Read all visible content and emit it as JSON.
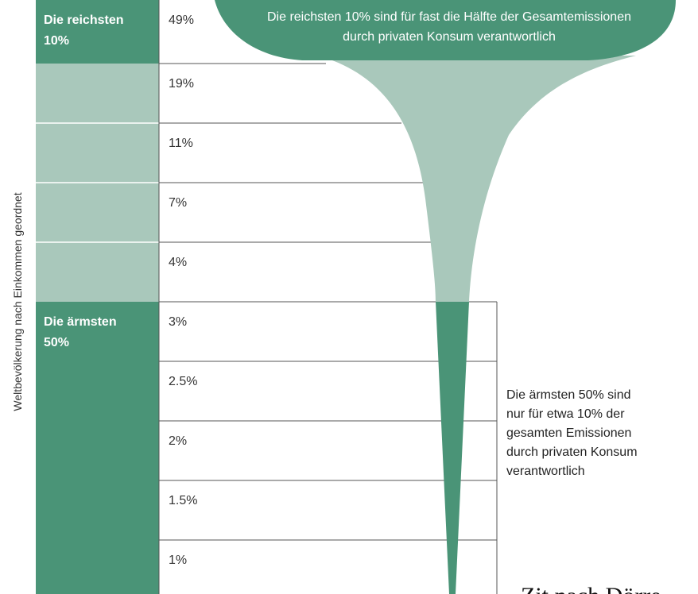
{
  "axis_label": "Weltbevölkerung nach Einkommen geordnet",
  "groups": [
    {
      "lines": [
        "Die reichsten",
        "10%"
      ]
    },
    {
      "lines": [
        "Die ärmsten",
        "50%"
      ]
    }
  ],
  "rows": [
    "49%",
    "19%",
    "11%",
    "7%",
    "4%",
    "3%",
    "2.5%",
    "2%",
    "1.5%",
    "1%"
  ],
  "top_note": [
    "Die reichsten 10% sind für fast die Hälfte der Gesamtemissionen",
    "durch privaten Konsum verantwortlich"
  ],
  "bottom_note": [
    "Die ärmsten 50% sind",
    "nur für etwa 10% der",
    "gesamten Emissionen",
    "durch privaten Konsum",
    "verantwortlich"
  ],
  "source": "Zit nach Dörre"
}
